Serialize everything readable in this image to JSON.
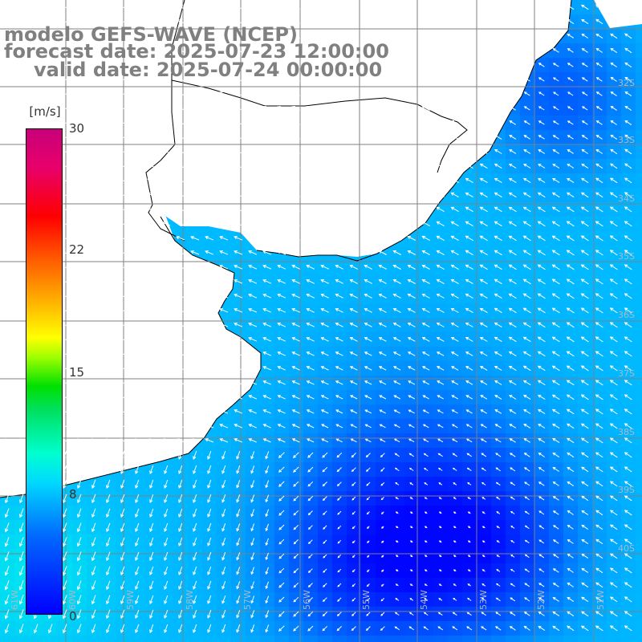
{
  "titles": {
    "line1": "modelo GEFS-WAVE (NCEP)",
    "line2": "forecast date: 2025-07-23 12:00:00",
    "line3": "valid date: 2025-07-24 00:00:00"
  },
  "colorbar": {
    "unit": "[m/s]",
    "ticks": [
      {
        "label": "30",
        "value": 30
      },
      {
        "label": "22",
        "value": 22
      },
      {
        "label": "15",
        "value": 15
      },
      {
        "label": "8",
        "value": 8
      },
      {
        "label": "0",
        "value": 0
      }
    ],
    "colors": [
      "#0000ff",
      "#0068ff",
      "#00d8ff",
      "#00ffd0",
      "#00e000",
      "#ffff00",
      "#ffc000",
      "#ff0000",
      "#c8007a"
    ]
  },
  "grid": {
    "lon_labels": [
      "61W",
      "60W",
      "59W",
      "58W",
      "57W",
      "56W",
      "55W",
      "54W",
      "53W",
      "52W",
      "51W"
    ],
    "lat_labels": [
      "32S",
      "33S",
      "34S",
      "35S",
      "36S",
      "37S",
      "38S",
      "39S",
      "40S"
    ]
  },
  "colors": {
    "land": "#ffffff",
    "coastline": "#000000",
    "gridline": "#808080",
    "arrow": "#ffffff"
  }
}
